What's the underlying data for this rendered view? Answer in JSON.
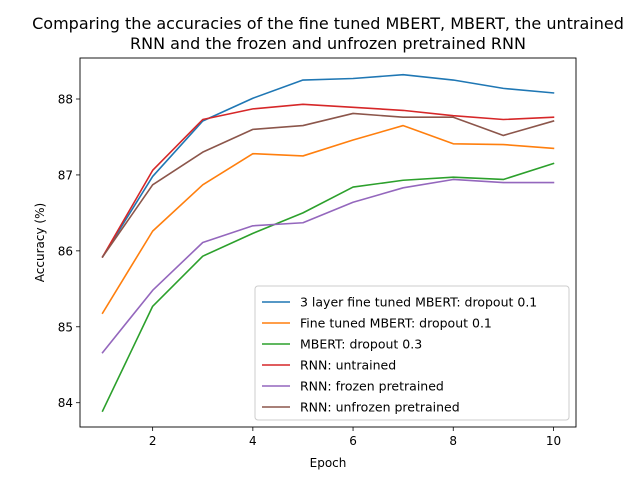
{
  "chart_data": {
    "type": "line",
    "title_line1": "Comparing the accuracies of the fine tuned MBERT, MBERT, the untrained",
    "title_line2": "RNN and the frozen and unfrozen pretrained RNN",
    "xlabel": "Epoch",
    "ylabel": "Accuracy (%)",
    "xlim": [
      0.55,
      10.45
    ],
    "ylim": [
      83.68,
      88.54
    ],
    "xticks": [
      2,
      4,
      6,
      8,
      10
    ],
    "yticks": [
      84,
      85,
      86,
      87,
      88
    ],
    "grid": false,
    "legend_position": "lower-right",
    "x": [
      1,
      2,
      3,
      4,
      5,
      6,
      7,
      8,
      9,
      10
    ],
    "series": [
      {
        "name": "3 layer fine tuned MBERT: dropout 0.1",
        "color": "#1f77b4",
        "values": [
          85.92,
          86.98,
          87.71,
          88.01,
          88.25,
          88.27,
          88.32,
          88.25,
          88.14,
          88.08
        ]
      },
      {
        "name": "Fine tuned MBERT: dropout 0.1",
        "color": "#ff7f0e",
        "values": [
          85.18,
          86.26,
          86.87,
          87.28,
          87.25,
          87.46,
          87.65,
          87.41,
          87.4,
          87.35
        ]
      },
      {
        "name": "MBERT: dropout 0.3",
        "color": "#2ca02c",
        "values": [
          83.89,
          85.27,
          85.93,
          86.23,
          86.5,
          86.84,
          86.93,
          86.97,
          86.94,
          87.15
        ]
      },
      {
        "name": "RNN: untrained",
        "color": "#d62728",
        "values": [
          85.92,
          87.06,
          87.73,
          87.87,
          87.93,
          87.89,
          87.85,
          87.78,
          87.73,
          87.76
        ]
      },
      {
        "name": "RNN: frozen pretrained",
        "color": "#9467bd",
        "values": [
          84.66,
          85.48,
          86.11,
          86.33,
          86.37,
          86.64,
          86.83,
          86.94,
          86.9,
          86.9
        ]
      },
      {
        "name": "RNN: unfrozen pretrained",
        "color": "#8c564b",
        "values": [
          85.92,
          86.87,
          87.3,
          87.6,
          87.65,
          87.81,
          87.76,
          87.76,
          87.52,
          87.71
        ]
      }
    ]
  }
}
